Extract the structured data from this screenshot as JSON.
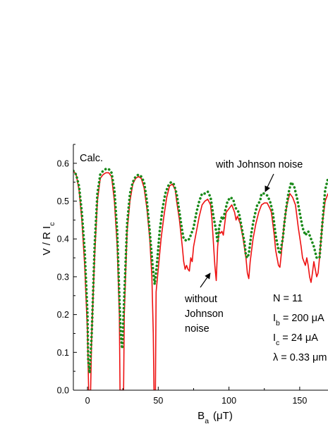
{
  "chart_data": {
    "type": "line",
    "xlabel": "B_a (μT)",
    "ylabel": "V / R I_c",
    "xlim": [
      -10,
      170
    ],
    "ylim": [
      0,
      0.65
    ],
    "x_ticks": [
      0,
      50,
      100,
      150
    ],
    "y_ticks": [
      0.0,
      0.1,
      0.2,
      0.3,
      0.4,
      0.5,
      0.6
    ],
    "grid": false,
    "calc_label": "Calc.",
    "annotations": {
      "with_noise": "with Johnson noise",
      "without_noise_lines": [
        "without",
        "Johnson",
        "noise"
      ]
    },
    "params": [
      {
        "lhs": "N",
        "sub": "",
        "rhs": "= 11"
      },
      {
        "lhs": "I",
        "sub": "b",
        "rhs": "= 200 μA"
      },
      {
        "lhs": "I",
        "sub": "c",
        "rhs": "= 24 μA"
      },
      {
        "lhs": "λ",
        "sub": "",
        "rhs": "= 0.33 μm"
      }
    ],
    "series": [
      {
        "key": "without",
        "color": "#ee1111",
        "style": "solid",
        "points": [
          [
            -10,
            0.58
          ],
          [
            -8,
            0.57
          ],
          [
            -6,
            0.53
          ],
          [
            -4,
            0.45
          ],
          [
            -2,
            0.33
          ],
          [
            0,
            0.15
          ],
          [
            0.8,
            0.0
          ],
          [
            2.2,
            0.0
          ],
          [
            3,
            0.15
          ],
          [
            5,
            0.35
          ],
          [
            7,
            0.5
          ],
          [
            9,
            0.56
          ],
          [
            11,
            0.57
          ],
          [
            13,
            0.575
          ],
          [
            15,
            0.575
          ],
          [
            17,
            0.565
          ],
          [
            19,
            0.5
          ],
          [
            21,
            0.38
          ],
          [
            22.5,
            0.2
          ],
          [
            23,
            0.0
          ],
          [
            25.5,
            0.0
          ],
          [
            26,
            0.2
          ],
          [
            28,
            0.42
          ],
          [
            30,
            0.5
          ],
          [
            32,
            0.545
          ],
          [
            34,
            0.56
          ],
          [
            36,
            0.565
          ],
          [
            38,
            0.56
          ],
          [
            40,
            0.535
          ],
          [
            42,
            0.48
          ],
          [
            44,
            0.4
          ],
          [
            45.5,
            0.3
          ],
          [
            46.5,
            0.15
          ],
          [
            47,
            0.0
          ],
          [
            48,
            0.0
          ],
          [
            48.5,
            0.26
          ],
          [
            50,
            0.32
          ],
          [
            52,
            0.4
          ],
          [
            54,
            0.46
          ],
          [
            56,
            0.51
          ],
          [
            58,
            0.54
          ],
          [
            60,
            0.545
          ],
          [
            62,
            0.53
          ],
          [
            63,
            0.5
          ],
          [
            65,
            0.45
          ],
          [
            67,
            0.38
          ],
          [
            68,
            0.34
          ],
          [
            69,
            0.32
          ],
          [
            70,
            0.33
          ],
          [
            71,
            0.32
          ],
          [
            72,
            0.315
          ],
          [
            73,
            0.35
          ],
          [
            74,
            0.34
          ],
          [
            75,
            0.38
          ],
          [
            77,
            0.42
          ],
          [
            79,
            0.46
          ],
          [
            81,
            0.49
          ],
          [
            83,
            0.5
          ],
          [
            85,
            0.505
          ],
          [
            87,
            0.49
          ],
          [
            88,
            0.45
          ],
          [
            89,
            0.39
          ],
          [
            90,
            0.33
          ],
          [
            91,
            0.29
          ],
          [
            92,
            0.38
          ],
          [
            93,
            0.42
          ],
          [
            94,
            0.415
          ],
          [
            95,
            0.42
          ],
          [
            96,
            0.41
          ],
          [
            97,
            0.44
          ],
          [
            98,
            0.47
          ],
          [
            100,
            0.48
          ],
          [
            102,
            0.49
          ],
          [
            104,
            0.47
          ],
          [
            105,
            0.45
          ],
          [
            106,
            0.46
          ],
          [
            108,
            0.44
          ],
          [
            110,
            0.4
          ],
          [
            112,
            0.35
          ],
          [
            113,
            0.31
          ],
          [
            114,
            0.295
          ],
          [
            115,
            0.34
          ],
          [
            117,
            0.4
          ],
          [
            119,
            0.44
          ],
          [
            121,
            0.47
          ],
          [
            122,
            0.48
          ],
          [
            123,
            0.49
          ],
          [
            125,
            0.495
          ],
          [
            127,
            0.495
          ],
          [
            129,
            0.48
          ],
          [
            130,
            0.47
          ],
          [
            131,
            0.44
          ],
          [
            132,
            0.41
          ],
          [
            133,
            0.37
          ],
          [
            134,
            0.35
          ],
          [
            135,
            0.33
          ],
          [
            136,
            0.325
          ],
          [
            137,
            0.36
          ],
          [
            139,
            0.44
          ],
          [
            141,
            0.49
          ],
          [
            143,
            0.52
          ],
          [
            145,
            0.51
          ],
          [
            147,
            0.49
          ],
          [
            149,
            0.43
          ],
          [
            151,
            0.38
          ],
          [
            152,
            0.35
          ],
          [
            153,
            0.34
          ],
          [
            154,
            0.33
          ],
          [
            155,
            0.35
          ],
          [
            156,
            0.33
          ],
          [
            157,
            0.3
          ],
          [
            158,
            0.285
          ],
          [
            159,
            0.31
          ],
          [
            160,
            0.34
          ],
          [
            161,
            0.32
          ],
          [
            162,
            0.3
          ],
          [
            163,
            0.31
          ],
          [
            164,
            0.35
          ],
          [
            166,
            0.44
          ],
          [
            168,
            0.5
          ],
          [
            170,
            0.52
          ]
        ]
      },
      {
        "key": "with",
        "color": "#1a8a1a",
        "style": "dotted",
        "points": [
          [
            -10,
            0.58
          ],
          [
            -8,
            0.57
          ],
          [
            -6,
            0.54
          ],
          [
            -4,
            0.47
          ],
          [
            -2,
            0.37
          ],
          [
            0,
            0.2
          ],
          [
            0.5,
            0.08
          ],
          [
            1.5,
            0.045
          ],
          [
            3,
            0.15
          ],
          [
            5,
            0.38
          ],
          [
            7,
            0.52
          ],
          [
            9,
            0.57
          ],
          [
            11,
            0.58
          ],
          [
            13,
            0.585
          ],
          [
            15,
            0.585
          ],
          [
            17,
            0.575
          ],
          [
            19,
            0.53
          ],
          [
            21,
            0.42
          ],
          [
            22.5,
            0.25
          ],
          [
            23.5,
            0.15
          ],
          [
            24.5,
            0.11
          ],
          [
            26,
            0.25
          ],
          [
            28,
            0.44
          ],
          [
            30,
            0.52
          ],
          [
            32,
            0.55
          ],
          [
            34,
            0.565
          ],
          [
            36,
            0.57
          ],
          [
            38,
            0.565
          ],
          [
            40,
            0.55
          ],
          [
            42,
            0.5
          ],
          [
            44,
            0.42
          ],
          [
            46,
            0.33
          ],
          [
            47.5,
            0.28
          ],
          [
            49,
            0.33
          ],
          [
            51,
            0.42
          ],
          [
            53,
            0.48
          ],
          [
            55,
            0.52
          ],
          [
            57,
            0.54
          ],
          [
            59,
            0.55
          ],
          [
            61,
            0.545
          ],
          [
            63,
            0.52
          ],
          [
            65,
            0.47
          ],
          [
            67,
            0.42
          ],
          [
            68,
            0.4
          ],
          [
            70,
            0.395
          ],
          [
            72,
            0.4
          ],
          [
            73,
            0.41
          ],
          [
            75,
            0.43
          ],
          [
            77,
            0.47
          ],
          [
            79,
            0.5
          ],
          [
            81,
            0.52
          ],
          [
            83,
            0.52
          ],
          [
            85,
            0.525
          ],
          [
            87,
            0.51
          ],
          [
            89,
            0.46
          ],
          [
            91,
            0.42
          ],
          [
            92,
            0.39
          ],
          [
            93,
            0.43
          ],
          [
            95,
            0.46
          ],
          [
            96,
            0.45
          ],
          [
            97,
            0.47
          ],
          [
            99,
            0.5
          ],
          [
            101,
            0.51
          ],
          [
            103,
            0.505
          ],
          [
            104,
            0.49
          ],
          [
            105,
            0.48
          ],
          [
            107,
            0.47
          ],
          [
            109,
            0.43
          ],
          [
            111,
            0.39
          ],
          [
            112,
            0.355
          ],
          [
            113,
            0.35
          ],
          [
            114,
            0.36
          ],
          [
            116,
            0.42
          ],
          [
            118,
            0.46
          ],
          [
            120,
            0.49
          ],
          [
            122,
            0.5
          ],
          [
            123,
            0.52
          ],
          [
            125,
            0.52
          ],
          [
            127,
            0.515
          ],
          [
            129,
            0.5
          ],
          [
            131,
            0.47
          ],
          [
            133,
            0.41
          ],
          [
            135,
            0.37
          ],
          [
            136,
            0.36
          ],
          [
            138,
            0.4
          ],
          [
            140,
            0.47
          ],
          [
            142,
            0.52
          ],
          [
            144,
            0.55
          ],
          [
            146,
            0.54
          ],
          [
            148,
            0.51
          ],
          [
            150,
            0.47
          ],
          [
            152,
            0.43
          ],
          [
            154,
            0.41
          ],
          [
            156,
            0.42
          ],
          [
            158,
            0.4
          ],
          [
            160,
            0.38
          ],
          [
            162,
            0.35
          ],
          [
            164,
            0.35
          ],
          [
            166,
            0.44
          ],
          [
            168,
            0.53
          ],
          [
            170,
            0.56
          ]
        ]
      }
    ]
  }
}
